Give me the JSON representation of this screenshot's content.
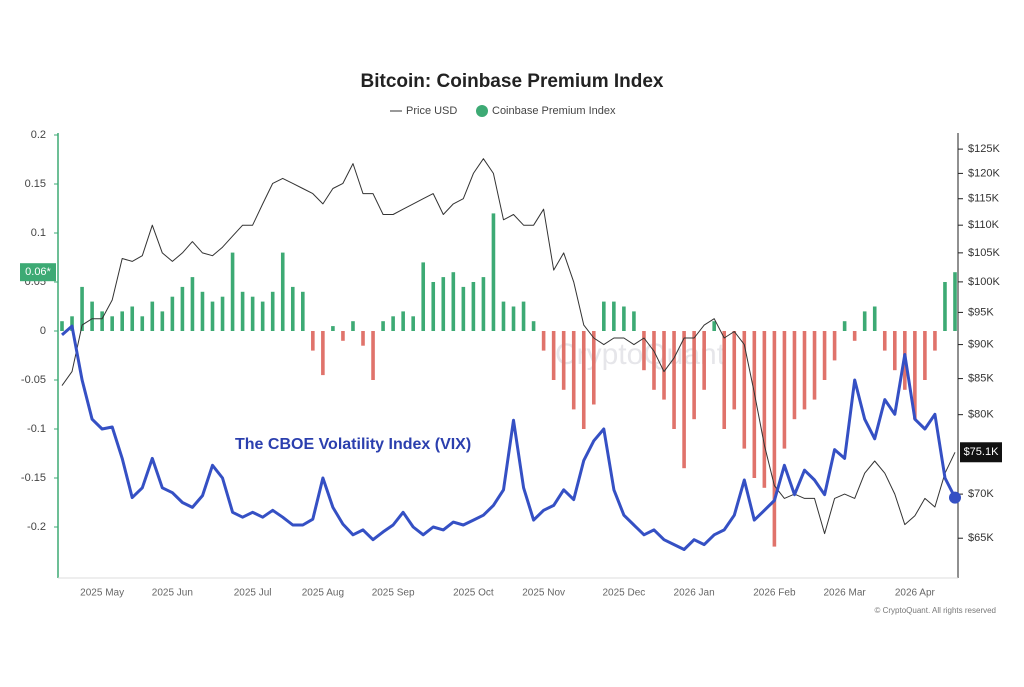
{
  "chart_data": {
    "type": "combo",
    "title": "Bitcoin: Coinbase Premium Index",
    "annotation": "The CBOE Volatility Index (VIX)",
    "watermark": "CryptoQuant",
    "copyright": "© CryptoQuant. All rights reserved",
    "categories": [
      null,
      null,
      null,
      null,
      "2025 May",
      null,
      null,
      null,
      null,
      null,
      null,
      "2025 Jun",
      null,
      null,
      null,
      null,
      null,
      null,
      null,
      "2025 Jul",
      null,
      null,
      null,
      null,
      null,
      null,
      "2025 Aug",
      null,
      null,
      null,
      null,
      null,
      null,
      "2025 Sep",
      null,
      null,
      null,
      null,
      null,
      null,
      null,
      "2025 Oct",
      null,
      null,
      null,
      null,
      null,
      null,
      "2025 Nov",
      null,
      null,
      null,
      null,
      null,
      null,
      null,
      "2025 Dec",
      null,
      null,
      null,
      null,
      null,
      null,
      "2026 Jan",
      null,
      null,
      null,
      null,
      null,
      null,
      null,
      "2026 Feb",
      null,
      null,
      null,
      null,
      null,
      null,
      "2026 Mar",
      null,
      null,
      null,
      null,
      null,
      null,
      "2026 Apr",
      null,
      null,
      null,
      null
    ],
    "series": [
      {
        "name": "Price USD",
        "type": "line",
        "axis": "y2",
        "color": "#333333",
        "values": [
          84000,
          86000,
          93000,
          94000,
          94000,
          97000,
          104000,
          103500,
          104500,
          110000,
          105000,
          103500,
          105000,
          107000,
          105000,
          104500,
          106000,
          108000,
          110000,
          110000,
          114000,
          118000,
          119000,
          118000,
          117000,
          116000,
          114000,
          117000,
          118000,
          122000,
          116000,
          116000,
          112000,
          112000,
          113000,
          114000,
          115000,
          116000,
          112000,
          114000,
          115000,
          120000,
          123000,
          120000,
          111000,
          112000,
          110000,
          110000,
          113000,
          102000,
          105000,
          100000,
          93000,
          91000,
          90000,
          91000,
          91000,
          90000,
          91000,
          89000,
          86000,
          88000,
          91000,
          91000,
          93000,
          94000,
          91000,
          92000,
          90000,
          83000,
          76000,
          71000,
          69500,
          70000,
          69500,
          69500,
          65500,
          69500,
          70000,
          69500,
          72500,
          74000,
          72500,
          70000,
          66500,
          67500,
          69500,
          68500,
          72500,
          75100
        ]
      },
      {
        "name": "Coinbase Premium Index",
        "type": "bar",
        "axis": "y",
        "color": "#3daa74",
        "negative_color": "#e0736b",
        "values": [
          0.01,
          0.015,
          0.045,
          0.03,
          0.02,
          0.015,
          0.02,
          0.025,
          0.015,
          0.03,
          0.02,
          0.035,
          0.045,
          0.055,
          0.04,
          0.03,
          0.035,
          0.08,
          0.04,
          0.035,
          0.03,
          0.04,
          0.08,
          0.045,
          0.04,
          -0.02,
          -0.045,
          0.005,
          -0.01,
          0.01,
          -0.015,
          -0.05,
          0.01,
          0.015,
          0.02,
          0.015,
          0.07,
          0.05,
          0.055,
          0.06,
          0.045,
          0.05,
          0.055,
          0.12,
          0.03,
          0.025,
          0.03,
          0.01,
          -0.02,
          -0.05,
          -0.06,
          -0.08,
          -0.1,
          -0.075,
          0.03,
          0.03,
          0.025,
          0.02,
          -0.04,
          -0.06,
          -0.07,
          -0.1,
          -0.14,
          -0.09,
          -0.06,
          0.01,
          -0.1,
          -0.08,
          -0.12,
          -0.15,
          -0.16,
          -0.22,
          -0.12,
          -0.09,
          -0.08,
          -0.07,
          -0.05,
          -0.03,
          0.01,
          -0.01,
          0.02,
          0.025,
          -0.02,
          -0.04,
          -0.06,
          -0.09,
          -0.05,
          -0.02,
          0.05,
          0.06
        ]
      },
      {
        "name": "The CBOE Volatility Index (VIX)",
        "type": "line",
        "axis": "y",
        "color": "#3550c4",
        "values": [
          -0.004,
          0.005,
          -0.05,
          -0.09,
          -0.1,
          -0.098,
          -0.13,
          -0.17,
          -0.16,
          -0.13,
          -0.16,
          -0.165,
          -0.175,
          -0.18,
          -0.168,
          -0.137,
          -0.15,
          -0.185,
          -0.19,
          -0.185,
          -0.19,
          -0.183,
          -0.19,
          -0.198,
          -0.198,
          -0.192,
          -0.15,
          -0.18,
          -0.197,
          -0.208,
          -0.203,
          -0.213,
          -0.205,
          -0.198,
          -0.185,
          -0.2,
          -0.208,
          -0.2,
          -0.203,
          -0.195,
          -0.198,
          -0.193,
          -0.188,
          -0.178,
          -0.162,
          -0.091,
          -0.16,
          -0.193,
          -0.183,
          -0.178,
          -0.162,
          -0.172,
          -0.132,
          -0.112,
          -0.1,
          -0.162,
          -0.188,
          -0.198,
          -0.208,
          -0.203,
          -0.213,
          -0.218,
          -0.223,
          -0.213,
          -0.218,
          -0.208,
          -0.203,
          -0.188,
          -0.152,
          -0.193,
          -0.183,
          -0.173,
          -0.137,
          -0.167,
          -0.142,
          -0.152,
          -0.167,
          -0.121,
          -0.13,
          -0.05,
          -0.09,
          -0.11,
          -0.07,
          -0.085,
          -0.024,
          -0.09,
          -0.1,
          -0.085,
          -0.15,
          -0.17
        ]
      }
    ],
    "ylim": [
      -0.25,
      0.2
    ],
    "yticks": [
      0.2,
      0.15,
      0.1,
      0.05,
      0,
      -0.05,
      -0.1,
      -0.15,
      -0.2
    ],
    "y2lim": [
      61000,
      128000
    ],
    "y2scale": "log",
    "y2ticks": [
      {
        "value": 125000,
        "label": "$125K"
      },
      {
        "value": 120000,
        "label": "$120K"
      },
      {
        "value": 115000,
        "label": "$115K"
      },
      {
        "value": 110000,
        "label": "$110K"
      },
      {
        "value": 105000,
        "label": "$105K"
      },
      {
        "value": 100000,
        "label": "$100K"
      },
      {
        "value": 95000,
        "label": "$95K"
      },
      {
        "value": 90000,
        "label": "$90K"
      },
      {
        "value": 85000,
        "label": "$85K"
      },
      {
        "value": 80000,
        "label": "$80K"
      },
      {
        "value": 70000,
        "label": "$70K"
      },
      {
        "value": 65000,
        "label": "$65K"
      }
    ],
    "current_premium": {
      "value": 0.06,
      "label": "0.06*"
    },
    "current_price": {
      "value": 75100,
      "label": "$75.1K"
    },
    "grid": false
  }
}
